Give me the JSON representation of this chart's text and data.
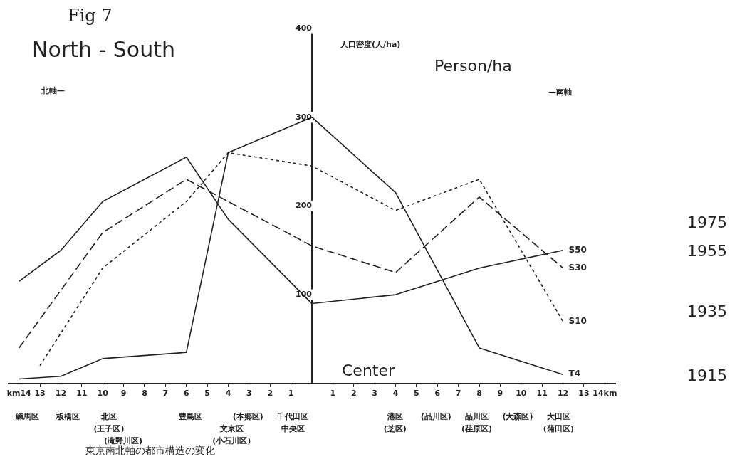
{
  "chart_data": {
    "type": "line",
    "title": "Fig 7",
    "subtitle": "North - South",
    "ylabel": "人口密度(人/ha)",
    "xlim": [
      -14.5,
      14.5
    ],
    "xticks": [
      {
        "value": -14,
        "label": "km14"
      },
      {
        "value": -13,
        "label": "13"
      },
      {
        "value": -12,
        "label": "12"
      },
      {
        "value": -11,
        "label": "11"
      },
      {
        "value": -10,
        "label": "10"
      },
      {
        "value": -9,
        "label": "9"
      },
      {
        "value": -8,
        "label": "8"
      },
      {
        "value": -7,
        "label": "7"
      },
      {
        "value": -6,
        "label": "6"
      },
      {
        "value": -5,
        "label": "5"
      },
      {
        "value": -4,
        "label": "4"
      },
      {
        "value": -3,
        "label": "3"
      },
      {
        "value": -2,
        "label": "2"
      },
      {
        "value": -1,
        "label": "1"
      },
      1,
      2,
      3,
      4,
      5,
      6,
      7,
      8,
      9,
      10,
      11,
      12,
      13,
      {
        "value": 14,
        "label": "14km"
      }
    ],
    "ylim": [
      0,
      400
    ],
    "yticks": [
      100,
      200,
      300,
      400
    ],
    "grid": false,
    "legend": false,
    "marker": "none",
    "series": [
      {
        "name": "S50",
        "color": "#222222",
        "line_style": "solid",
        "x": [
          -14,
          -12,
          -10,
          -6,
          -4,
          0,
          4,
          8,
          12
        ],
        "values": [
          115,
          150,
          205,
          255,
          185,
          90,
          100,
          130,
          150
        ]
      },
      {
        "name": "S30",
        "color": "#222222",
        "line_style": "dashed",
        "x": [
          -14,
          -10,
          -6,
          0,
          4,
          8,
          12
        ],
        "values": [
          40,
          170,
          230,
          155,
          125,
          210,
          130
        ]
      },
      {
        "name": "S10",
        "color": "#222222",
        "line_style": "dotted",
        "x": [
          -13,
          -10,
          -6,
          -4,
          0,
          4,
          8,
          12
        ],
        "values": [
          20,
          130,
          205,
          260,
          245,
          195,
          230,
          70
        ]
      },
      {
        "name": "T4",
        "color": "#222222",
        "line_style": "solid",
        "x": [
          -14,
          -12,
          -10,
          -6,
          -4,
          0,
          4,
          8,
          12
        ],
        "values": [
          5,
          8,
          28,
          35,
          260,
          300,
          215,
          40,
          10
        ]
      }
    ],
    "annotations": [
      "北軸—",
      "—南軸",
      "Person/ha",
      "Center",
      "1975",
      "1955",
      "1935",
      "1915",
      "東京南北軸の都市構造の変化",
      "練馬区",
      "板橋区",
      "北区",
      "(王子区)",
      "(滝野川区)",
      "豊島区",
      "(本郷区)",
      "文京区",
      "(小石川区)",
      "千代田区",
      "中央区",
      "港区",
      "(芝区)",
      "(品川区)",
      "品川区",
      "(荏原区)",
      "(大森区)",
      "大田区",
      "(蒲田区)"
    ]
  }
}
